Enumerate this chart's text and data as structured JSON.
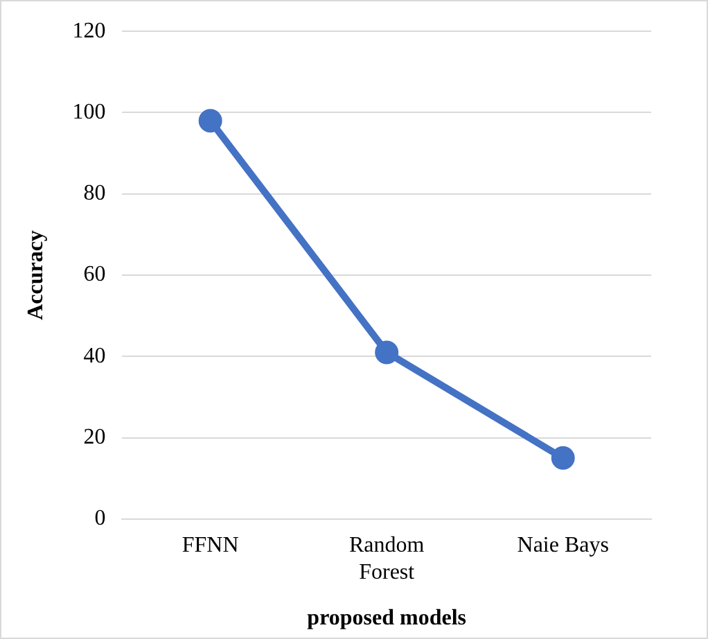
{
  "chart_data": {
    "type": "line",
    "xlabel": "proposed models",
    "ylabel": "Accuracy",
    "categories": [
      "FFNN",
      "Random Forest",
      "Naie Bays"
    ],
    "series": [
      {
        "color": "#4472c4",
        "values": [
          98,
          41,
          15
        ]
      }
    ],
    "ylim": [
      0,
      120
    ],
    "yticks": [
      0,
      20,
      40,
      60,
      80,
      100,
      120
    ],
    "grid": "y",
    "legend": false,
    "marker": "circle",
    "line_style": "solid"
  }
}
